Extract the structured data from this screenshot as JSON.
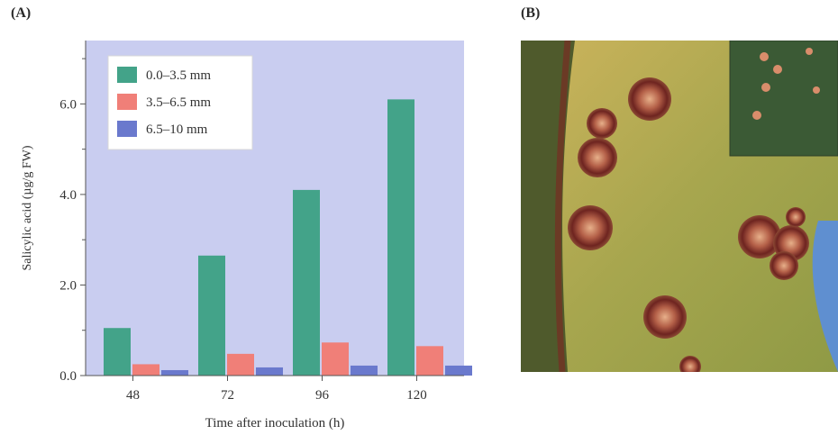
{
  "panel_a_label": "(A)",
  "panel_b_label": "(B)",
  "colors": {
    "plot_bg": "#c9cdf0",
    "series": [
      "#43a389",
      "#f07f78",
      "#6a79cd"
    ]
  },
  "chart_data": {
    "type": "bar",
    "title": "",
    "xlabel": "Time after inoculation (h)",
    "ylabel": "Salicylic acid (µg/g FW)",
    "categories": [
      "48",
      "72",
      "96",
      "120"
    ],
    "ylim": [
      0,
      7.4
    ],
    "yticks": [
      "0.0",
      "2.0",
      "4.0",
      "6.0"
    ],
    "grid": false,
    "legend_position": "top-left",
    "series": [
      {
        "name": "0.0–3.5 mm",
        "values": [
          1.05,
          2.65,
          4.1,
          6.1
        ]
      },
      {
        "name": "3.5–6.5 mm",
        "values": [
          0.25,
          0.48,
          0.73,
          0.65
        ]
      },
      {
        "name": "6.5–10 mm",
        "values": [
          0.12,
          0.18,
          0.22,
          0.22
        ]
      }
    ]
  },
  "photo": {
    "subject": "leaf with necrotic lesions",
    "colors": {
      "leaf": "#b5b156",
      "leaf_dark": "#56602e",
      "lesion_ring": "#7a2a24",
      "lesion_center": "#d79a76",
      "sky": "#5f8fd0"
    }
  }
}
